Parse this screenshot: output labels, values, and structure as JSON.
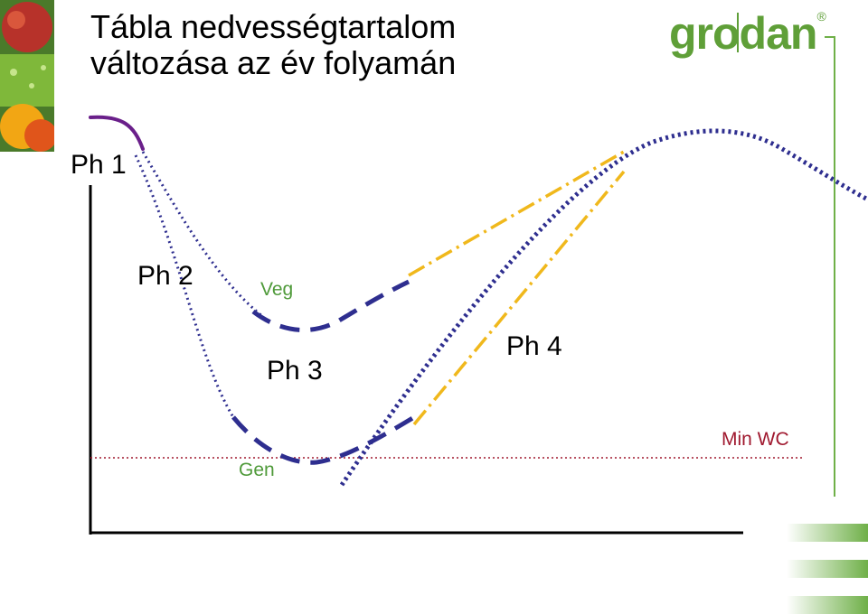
{
  "title": {
    "line1": "Tábla nedvességtartalom",
    "line2": "változása az év folyamán"
  },
  "logo": {
    "text": "grodan",
    "mark": "®"
  },
  "labels": {
    "ph1": "Ph 1",
    "ph2": "Ph 2",
    "ph3": "Ph 3",
    "ph4": "Ph 4",
    "veg": "Veg",
    "gen": "Gen",
    "min_wc": "Min WC"
  },
  "colors": {
    "navy": "#2e2e8f",
    "purple": "#6a1f8a",
    "yellow": "#f0b81c",
    "min_line": "#a0192f",
    "green": "#5f9f38",
    "axis": "#000000"
  }
}
